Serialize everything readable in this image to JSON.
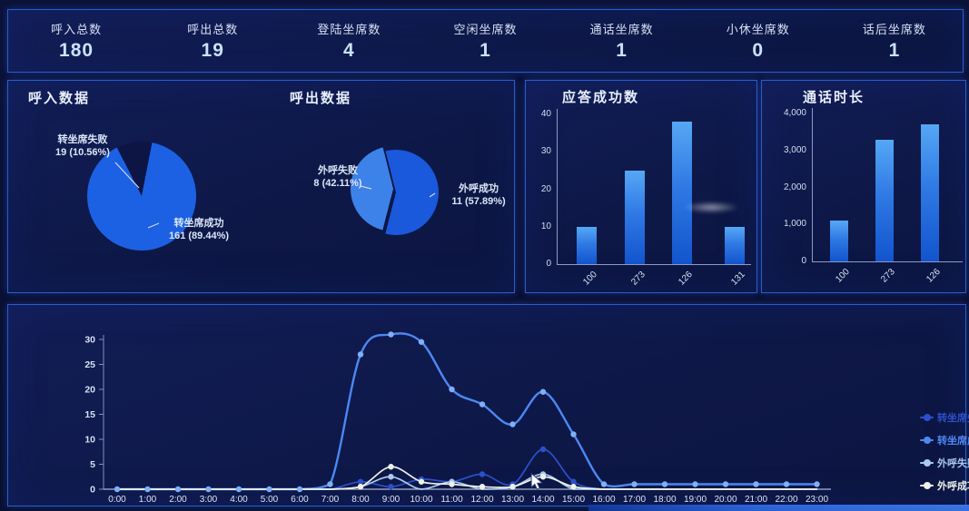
{
  "stats": {
    "items": [
      {
        "label": "呼入总数",
        "value": "180"
      },
      {
        "label": "呼出总数",
        "value": "19"
      },
      {
        "label": "登陆坐席数",
        "value": "4"
      },
      {
        "label": "空闲坐席数",
        "value": "1"
      },
      {
        "label": "通话坐席数",
        "value": "1"
      },
      {
        "label": "小休坐席数",
        "value": "0"
      },
      {
        "label": "话后坐席数",
        "value": "1"
      }
    ]
  },
  "colors": {
    "page_bg": "#0a1033",
    "panel_bg": "#0e1848",
    "panel_border": "#2d5bd1",
    "bar_gradient_top": "#56a7f5",
    "bar_gradient_bottom": "#1254cd",
    "axis": "#8d9bc7",
    "tick_text": "#d5dff2",
    "title_text": "#e9effb",
    "stat_value": "#c9e2fa"
  },
  "chart_data": [
    {
      "type": "pie",
      "title": "呼入数据",
      "slices": [
        {
          "label": "转坐席失败",
          "value": 19,
          "pct": 10.56,
          "display": "19 (10.56%)",
          "color": "#0d1545"
        },
        {
          "label": "转坐席成功",
          "value": 161,
          "pct": 89.44,
          "display": "161 (89.44%)",
          "color": "#1c61e3"
        }
      ]
    },
    {
      "type": "pie",
      "title": "呼出数据",
      "slices": [
        {
          "label": "外呼失败",
          "value": 8,
          "pct": 42.11,
          "display": "8 (42.11%)",
          "color": "#3c82e8"
        },
        {
          "label": "外呼成功",
          "value": 11,
          "pct": 57.89,
          "display": "11 (57.89%)",
          "color": "#1a58dc"
        }
      ]
    },
    {
      "type": "bar",
      "title": "应答成功数",
      "categories": [
        "100",
        "273",
        "126",
        "131"
      ],
      "values": [
        10,
        25,
        38,
        10
      ],
      "ylim": [
        0,
        40
      ],
      "yticks": [
        "0",
        "10",
        "20",
        "30",
        "40"
      ]
    },
    {
      "type": "bar",
      "title": "通话时长",
      "categories": [
        "100",
        "273",
        "126"
      ],
      "values": [
        1100,
        3300,
        3700
      ],
      "ylim": [
        0,
        4000
      ],
      "yticks": [
        "0",
        "1,000",
        "2,000",
        "3,000",
        "4,000"
      ]
    },
    {
      "type": "line",
      "x": [
        "0:00",
        "1:00",
        "2:00",
        "3:00",
        "4:00",
        "5:00",
        "6:00",
        "7:00",
        "8:00",
        "9:00",
        "10:00",
        "11:00",
        "12:00",
        "13:00",
        "14:00",
        "15:00",
        "16:00",
        "17:00",
        "18:00",
        "19:00",
        "20:00",
        "21:00",
        "22:00",
        "23:00"
      ],
      "ylim": [
        0,
        30
      ],
      "yticks": [
        0,
        5,
        10,
        15,
        20,
        25,
        30
      ],
      "legend_position": "right",
      "series": [
        {
          "name": "转坐席失败数",
          "color": "#2b50c9",
          "values": [
            0,
            0,
            0,
            0,
            0,
            0,
            0,
            0,
            1.5,
            0.5,
            2,
            1.5,
            3,
            1,
            8,
            1.5,
            0,
            0,
            0,
            0,
            0,
            0,
            0,
            0
          ]
        },
        {
          "name": "转坐席成功数",
          "color": "#4c88f4",
          "values": [
            0,
            0,
            0,
            0,
            0,
            0,
            0,
            1,
            27,
            31,
            29.5,
            20,
            17,
            13,
            19.5,
            11,
            1,
            1,
            1,
            1,
            1,
            1,
            1,
            1
          ]
        },
        {
          "name": "外呼失败数",
          "color": "#a9c9ef",
          "values": [
            0,
            0,
            0,
            0,
            0,
            0,
            0,
            0,
            0.5,
            2.5,
            0,
            1.5,
            0,
            0.5,
            3,
            0,
            0,
            0,
            0,
            0,
            0,
            0,
            0,
            0
          ]
        },
        {
          "name": "外呼成功数",
          "color": "#edf1e9",
          "values": [
            0,
            0,
            0,
            0,
            0,
            0,
            0,
            0,
            0.5,
            4.5,
            1.5,
            1,
            0.5,
            0.5,
            2.5,
            0.5,
            0,
            0,
            0,
            0,
            0,
            0,
            0,
            0
          ]
        }
      ]
    }
  ]
}
